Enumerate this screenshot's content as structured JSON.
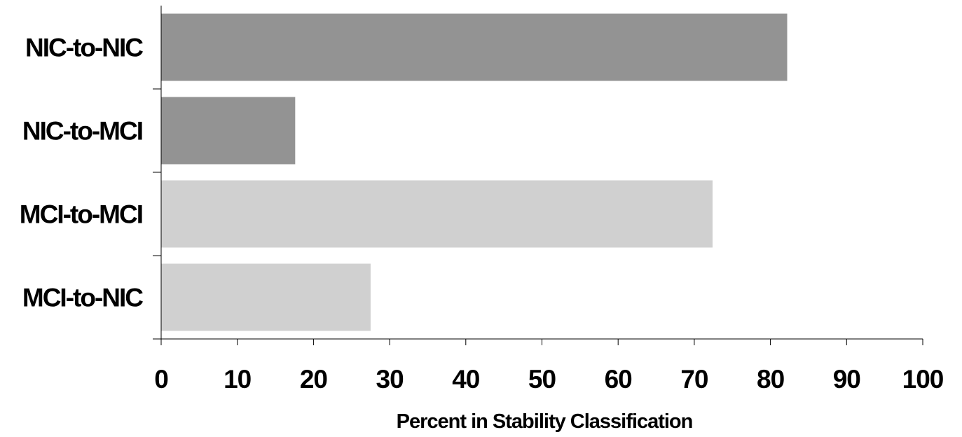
{
  "chart_data": {
    "type": "bar",
    "orientation": "horizontal",
    "categories": [
      "NIC-to-NIC",
      "NIC-to-MCI",
      "MCI-to-MCI",
      "MCI-to-NIC"
    ],
    "values": [
      82.2,
      17.6,
      72.4,
      27.5
    ],
    "bar_colors": [
      "#939393",
      "#939393",
      "#d0d0d0",
      "#d0d0d0"
    ],
    "xlabel": "Percent in Stability Classification",
    "ylabel": "",
    "xlim": [
      0,
      100
    ],
    "xticks": [
      0,
      10,
      20,
      30,
      40,
      50,
      60,
      70,
      80,
      90,
      100
    ],
    "xtick_labels": [
      "0",
      "10",
      "20",
      "30",
      "40",
      "50",
      "60",
      "70",
      "80",
      "90",
      "100"
    ],
    "grid": false,
    "legend": "none"
  }
}
